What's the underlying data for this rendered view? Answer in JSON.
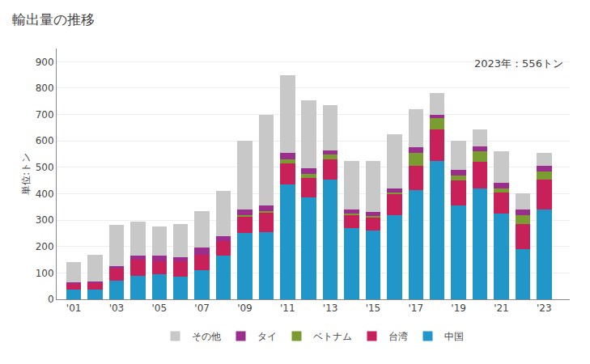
{
  "chart_data": {
    "type": "bar",
    "stacked": true,
    "title": "輸出量の推移",
    "ylabel": "単位:トン",
    "annotation": "2023年：556トン",
    "x": [
      2001,
      2002,
      2003,
      2004,
      2005,
      2006,
      2007,
      2008,
      2009,
      2010,
      2011,
      2012,
      2013,
      2014,
      2015,
      2016,
      2017,
      2018,
      2019,
      2020,
      2021,
      2022,
      2023
    ],
    "series": [
      {
        "name": "中国",
        "color": "#2196c8",
        "values": [
          38,
          38,
          72,
          90,
          95,
          85,
          110,
          165,
          250,
          255,
          435,
          385,
          455,
          270,
          260,
          320,
          415,
          525,
          355,
          420,
          325,
          190,
          340
        ]
      },
      {
        "name": "台湾",
        "color": "#c8215a",
        "values": [
          22,
          25,
          45,
          60,
          50,
          60,
          60,
          55,
          65,
          75,
          80,
          75,
          75,
          50,
          50,
          80,
          90,
          120,
          95,
          100,
          80,
          95,
          115
        ]
      },
      {
        "name": "ベトナム",
        "color": "#7b9c30",
        "values": [
          0,
          0,
          0,
          0,
          0,
          0,
          0,
          0,
          5,
          5,
          15,
          15,
          20,
          5,
          5,
          5,
          50,
          40,
          20,
          40,
          15,
          35,
          30
        ]
      },
      {
        "name": "タイ",
        "color": "#9b2d8c",
        "values": [
          5,
          5,
          10,
          15,
          20,
          15,
          25,
          20,
          20,
          20,
          25,
          20,
          15,
          15,
          15,
          15,
          20,
          15,
          20,
          20,
          20,
          20,
          20
        ]
      },
      {
        "name": "その他",
        "color": "#c8c8c8",
        "values": [
          75,
          100,
          155,
          130,
          110,
          125,
          140,
          170,
          260,
          345,
          295,
          260,
          170,
          185,
          195,
          205,
          145,
          80,
          110,
          65,
          120,
          60,
          51
        ]
      }
    ],
    "xlim": [
      2000.2,
      2024.2
    ],
    "xticks": [
      {
        "value": 2001,
        "label": "'01"
      },
      {
        "value": 2003,
        "label": "'03"
      },
      {
        "value": 2005,
        "label": "'05"
      },
      {
        "value": 2007,
        "label": "'07"
      },
      {
        "value": 2009,
        "label": "'09"
      },
      {
        "value": 2011,
        "label": "'11"
      },
      {
        "value": 2013,
        "label": "'13"
      },
      {
        "value": 2015,
        "label": "'15"
      },
      {
        "value": 2017,
        "label": "'17"
      },
      {
        "value": 2019,
        "label": "'19"
      },
      {
        "value": 2021,
        "label": "'21"
      },
      {
        "value": 2023,
        "label": "'23"
      }
    ],
    "ylim": [
      0,
      950
    ],
    "yticks": [
      0,
      100,
      200,
      300,
      400,
      500,
      600,
      700,
      800,
      900
    ],
    "grid": true,
    "legend": "bottom"
  }
}
